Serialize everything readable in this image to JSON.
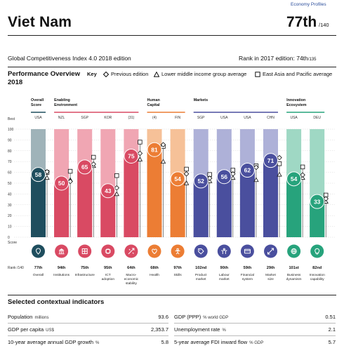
{
  "header": {
    "econ_link": "Economy Profiles",
    "country": "Viet Nam",
    "rank": "77th",
    "rank_of": "/140",
    "edition": "Global Competitiveness Index 4.0 2018 edition",
    "prev_rank_label": "Rank in 2017 edition: 74th",
    "prev_rank_of": "/135"
  },
  "overview": {
    "title": "Performance Overview",
    "year": "2018",
    "key_label": "Key",
    "legend": [
      {
        "symbol": "diamond",
        "label": "Previous edition"
      },
      {
        "symbol": "triangle",
        "label": "Lower middle income group average"
      },
      {
        "symbol": "square",
        "label": "East Asia and Pacific average"
      }
    ]
  },
  "chart_data": {
    "type": "bar",
    "best_label": "Best",
    "score_label": "Score",
    "rank_label": "Rank /140",
    "ylim": [
      0,
      100
    ],
    "yticks": [
      0,
      10,
      20,
      30,
      40,
      50,
      60,
      70,
      80,
      90,
      100
    ],
    "groups": [
      {
        "label": [
          "Overall",
          "Score"
        ],
        "count": 1,
        "color": "#1f4e5e"
      },
      {
        "label": [
          "Enabling",
          "Environment"
        ],
        "count": 4,
        "color": "#d94a63"
      },
      {
        "label": [
          "Human",
          "Capital"
        ],
        "count": 2,
        "color": "#ec7d34"
      },
      {
        "label": [
          "Markets"
        ],
        "count": 4,
        "color": "#4a4f9e"
      },
      {
        "label": [
          "Innovation",
          "Ecosystem"
        ],
        "count": 2,
        "color": "#27a37c"
      }
    ],
    "pillars": [
      {
        "name": [
          "Overall"
        ],
        "best": "USA",
        "value": 58,
        "rank": "77th",
        "prev": 58,
        "group_avg": 55,
        "region_avg": 60,
        "color": "#1f4e5e",
        "light": "#9fb3b9",
        "icon": "pin"
      },
      {
        "name": [
          "Institutions"
        ],
        "best": "NZL",
        "value": 50,
        "rank": "94th",
        "prev": 49,
        "group_avg": 53,
        "region_avg": 61,
        "color": "#d94a63",
        "light": "#f0a6b3",
        "icon": "building"
      },
      {
        "name": [
          "Infrastructure"
        ],
        "best": "SGP",
        "value": 65,
        "rank": "75th",
        "prev": 65,
        "group_avg": 66,
        "region_avg": 74,
        "color": "#d94a63",
        "light": "#f0a6b3",
        "icon": "road"
      },
      {
        "name": [
          "ICT",
          "adoption"
        ],
        "best": "KOR",
        "value": 43,
        "rank": "95th",
        "prev": 43,
        "group_avg": 40,
        "region_avg": 57,
        "color": "#d94a63",
        "light": "#f0a6b3",
        "icon": "chip"
      },
      {
        "name": [
          "Macro-",
          "economic",
          "stability"
        ],
        "best": "(31)",
        "value": 75,
        "rank": "64th",
        "prev": 75,
        "group_avg": 72,
        "region_avg": 88,
        "color": "#d94a63",
        "light": "#f0a6b3",
        "icon": "scale"
      },
      {
        "name": [
          "Health"
        ],
        "best": "(4)",
        "value": 81,
        "rank": "68th",
        "prev": 83,
        "group_avg": 70,
        "region_avg": 84,
        "color": "#ec7d34",
        "light": "#f6c198",
        "icon": "heart"
      },
      {
        "name": [
          "Skills"
        ],
        "best": "FIN",
        "value": 54,
        "rank": "97th",
        "prev": 56,
        "group_avg": 50,
        "region_avg": 63,
        "color": "#ec7d34",
        "light": "#f6c198",
        "icon": "person"
      },
      {
        "name": [
          "Product",
          "market"
        ],
        "best": "SGP",
        "value": 52,
        "rank": "102nd",
        "prev": 52,
        "group_avg": 52,
        "region_avg": 58,
        "color": "#4a4f9e",
        "light": "#aeb1d8",
        "icon": "tag"
      },
      {
        "name": [
          "Labour",
          "market"
        ],
        "best": "USA",
        "value": 56,
        "rank": "90th",
        "prev": 56,
        "group_avg": 55,
        "region_avg": 62,
        "color": "#4a4f9e",
        "light": "#aeb1d8",
        "icon": "people"
      },
      {
        "name": [
          "Financial",
          "system"
        ],
        "best": "USA",
        "value": 62,
        "rank": "59th",
        "prev": 62,
        "group_avg": 53,
        "region_avg": 66,
        "color": "#4a4f9e",
        "light": "#aeb1d8",
        "icon": "card"
      },
      {
        "name": [
          "Market",
          "size"
        ],
        "best": "CHN",
        "value": 71,
        "rank": "29th",
        "prev": 71,
        "group_avg": 58,
        "region_avg": 68,
        "color": "#4a4f9e",
        "light": "#aeb1d8",
        "icon": "expand"
      },
      {
        "name": [
          "Business",
          "dynamism"
        ],
        "best": "USA",
        "value": 54,
        "rank": "101st",
        "prev": 55,
        "group_avg": 55,
        "region_avg": 65,
        "color": "#27a37c",
        "light": "#9fd8c4",
        "icon": "globe"
      },
      {
        "name": [
          "Innovation",
          "capability"
        ],
        "best": "DEU",
        "value": 33,
        "rank": "82nd",
        "prev": 33,
        "group_avg": 33,
        "region_avg": 39,
        "color": "#27a37c",
        "light": "#9fd8c4",
        "icon": "bulb"
      }
    ]
  },
  "indicators": {
    "title": "Selected contextual indicators",
    "rows": [
      [
        {
          "label": "Population",
          "unit": "millions",
          "value": "93.6"
        },
        {
          "label": "GDP (PPP)",
          "unit": "% world GDP",
          "value": "0.51"
        }
      ],
      [
        {
          "label": "GDP per capita",
          "unit": "US$",
          "value": "2,353.7"
        },
        {
          "label": "Unemployment rate",
          "unit": "%",
          "value": "2.1"
        }
      ],
      [
        {
          "label": "10-year average annual GDP growth",
          "unit": "%",
          "value": "5.8"
        },
        {
          "label": "5-year average FDI inward flow",
          "unit": "% GDP",
          "value": "5.7"
        }
      ]
    ]
  }
}
